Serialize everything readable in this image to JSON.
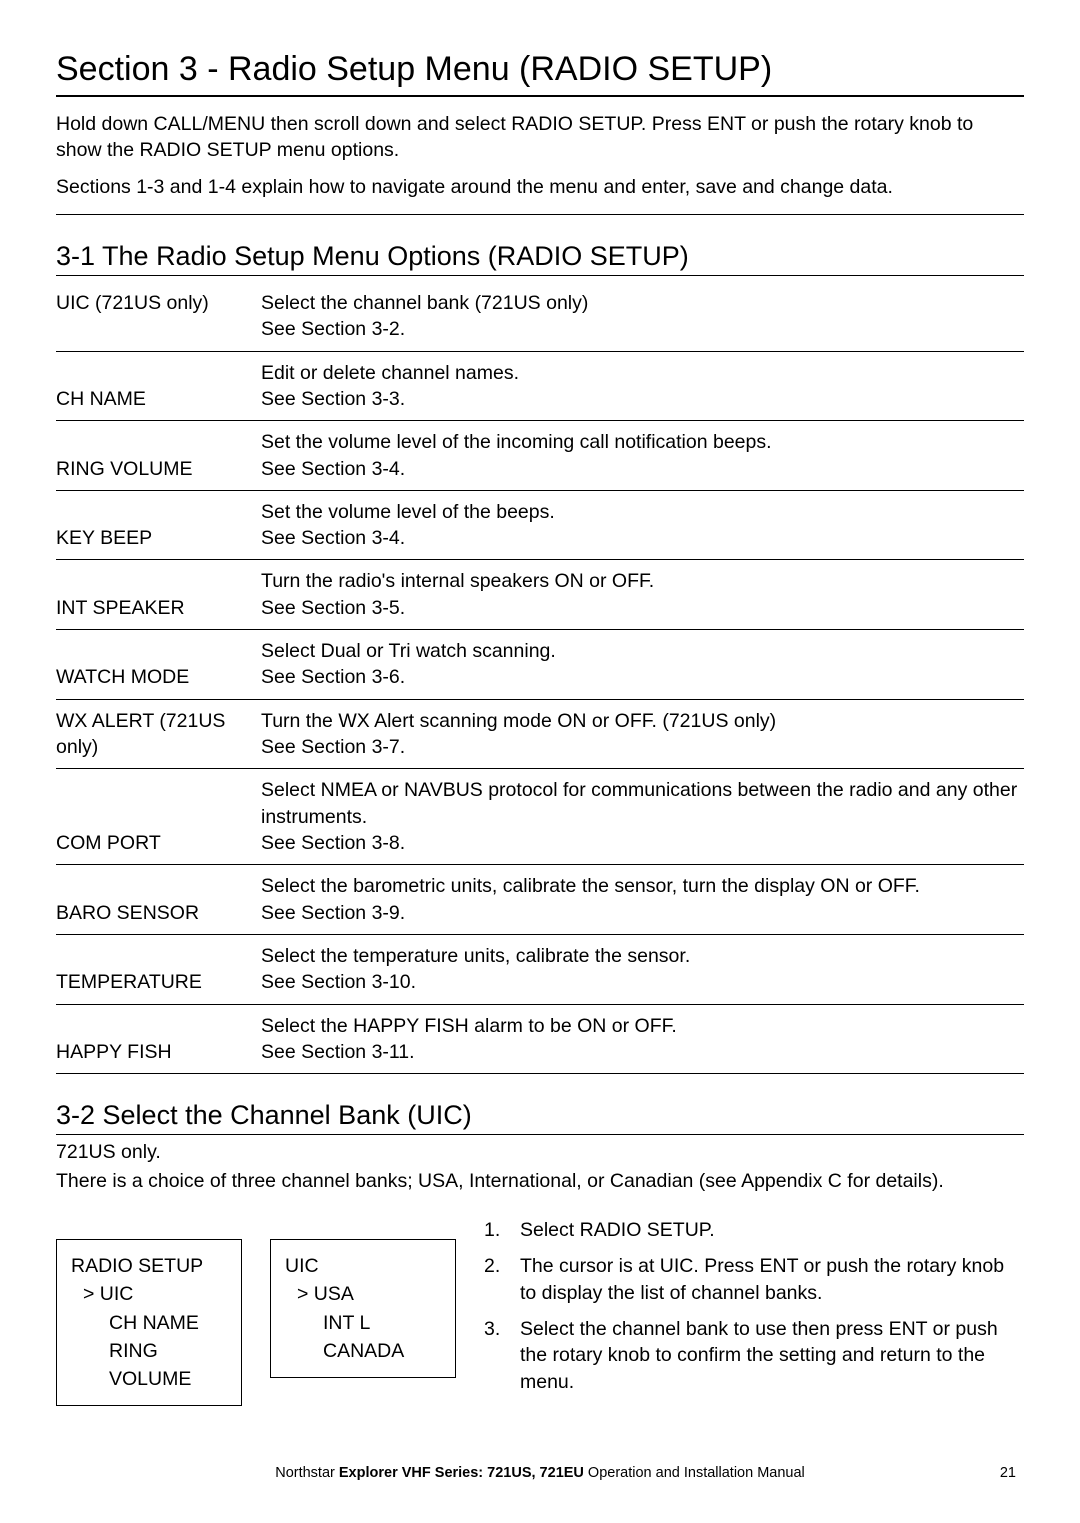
{
  "colors": {
    "text": "#000000",
    "background": "#ffffff",
    "rule": "#000000"
  },
  "typography": {
    "section_title_size_pt": 26,
    "subsection_title_size_pt": 20,
    "body_size_pt": 14.5,
    "footer_size_pt": 11
  },
  "section": {
    "title": "Section 3 - Radio Setup Menu (RADIO SETUP)",
    "intro1": "Hold down CALL/MENU then scroll down and select RADIO SETUP. Press ENT or push the rotary knob to show the RADIO SETUP menu options.",
    "intro2": "Sections 1-3 and 1-4 explain how to navigate around the menu and enter, save and change data."
  },
  "sub31": {
    "title": "3-1 The Radio Setup Menu Options (RADIO SETUP)",
    "rows": [
      {
        "label": "UIC (721US only)",
        "desc": "Select the channel bank (721US only)\nSee Section 3-2.",
        "align": "top"
      },
      {
        "label": "CH NAME",
        "desc": "Edit or delete channel names.\nSee Section 3-3.",
        "align": "bottom"
      },
      {
        "label": "RING VOLUME",
        "desc": "Set the volume level of the incoming call notification beeps.\nSee Section 3-4.",
        "align": "bottom"
      },
      {
        "label": "KEY BEEP",
        "desc": "Set the volume level of the beeps.\nSee Section 3-4.",
        "align": "bottom"
      },
      {
        "label": "INT SPEAKER",
        "desc": "Turn the radio's internal speakers ON or OFF.\nSee Section 3-5.",
        "align": "bottom"
      },
      {
        "label": "WATCH MODE",
        "desc": "Select Dual or Tri watch scanning.\nSee Section 3-6.",
        "align": "bottom"
      },
      {
        "label": "WX ALERT (721US only)",
        "desc": "Turn the WX Alert scanning mode ON or OFF. (721US only)\nSee Section 3-7.",
        "align": "bottom"
      },
      {
        "label": "COM PORT",
        "desc": "Select NMEA or NAVBUS protocol for communications between the radio and any other instruments.\nSee Section 3-8.",
        "align": "bottom"
      },
      {
        "label": "BARO SENSOR",
        "desc": "Select the barometric units, calibrate the sensor, turn the display ON or OFF.\nSee Section 3-9.",
        "align": "bottom"
      },
      {
        "label": "TEMPERATURE",
        "desc": "Select the temperature units, calibrate the sensor.\nSee Section 3-10.",
        "align": "bottom"
      },
      {
        "label": "HAPPY FISH",
        "desc": "Select the HAPPY FISH alarm to be ON or OFF.\nSee Section 3-11.",
        "align": "bottom"
      }
    ]
  },
  "sub32": {
    "title": "3-2  Select the Channel Bank (UIC)",
    "note": "721US only.",
    "choice": "There is a choice of three channel banks; USA, International, or Canadian (see Appendix C for details).",
    "box1": {
      "title": "RADIO SETUP",
      "lines": [
        ">  UIC",
        "CH NAME",
        "RING VOLUME"
      ]
    },
    "box2": {
      "title": "UIC",
      "lines": [
        ">  USA",
        "INT L",
        "CANADA"
      ]
    },
    "steps": [
      {
        "n": "1.",
        "t": "Select RADIO SETUP."
      },
      {
        "n": "2.",
        "t": "The cursor is at UIC. Press ENT or push the rotary knob to display the list of channel banks."
      },
      {
        "n": "3.",
        "t": "Select the channel bank to use then press ENT or push the rotary knob to confirm the setting and return to the menu."
      }
    ]
  },
  "footer": {
    "left": "Northstar ",
    "bold": "Explorer VHF Series: 721US, 721EU",
    "right": " Operation and Installation Manual",
    "page": "21"
  }
}
